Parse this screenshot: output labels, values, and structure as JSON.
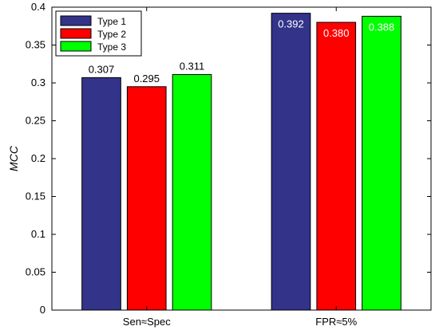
{
  "chart_data": {
    "type": "bar",
    "categories": [
      "Sen≈Spec",
      "FPR≈5%"
    ],
    "series": [
      {
        "name": "Type 1",
        "color": "#33338a",
        "values": [
          0.307,
          0.392
        ],
        "labels": [
          "0.307",
          "0.392"
        ]
      },
      {
        "name": "Type 2",
        "color": "#ff0000",
        "values": [
          0.295,
          0.38
        ],
        "labels": [
          "0.295",
          "0.380"
        ]
      },
      {
        "name": "Type 3",
        "color": "#00ff00",
        "values": [
          0.311,
          0.388
        ],
        "labels": [
          "0.311",
          "0.388"
        ]
      }
    ],
    "ylabel": "MCC",
    "ylim": [
      0,
      0.4
    ],
    "yticks": [
      0,
      0.05,
      0.1,
      0.15,
      0.2,
      0.25,
      0.3,
      0.35,
      0.4
    ],
    "ytick_labels": [
      "0",
      "0.05",
      "0.1",
      "0.15",
      "0.2",
      "0.25",
      "0.3",
      "0.35",
      "0.4"
    ],
    "grid": false,
    "legend_position": "top-left",
    "label_position": [
      "above",
      "inside-top"
    ]
  }
}
